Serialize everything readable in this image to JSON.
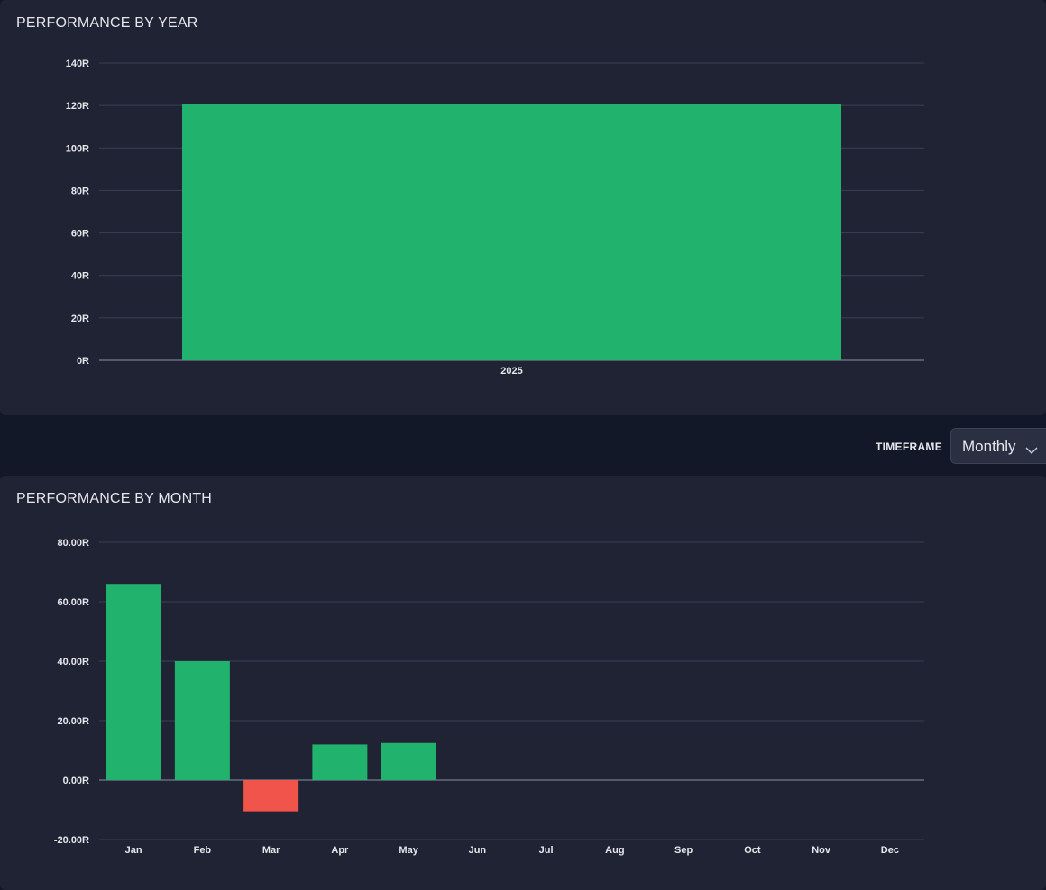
{
  "timeframe": {
    "label": "TIMEFRAME",
    "selected": "Monthly"
  },
  "colors": {
    "positive": "#21b26d",
    "negative": "#f0544a"
  },
  "chart_data": [
    {
      "type": "bar",
      "title": "PERFORMANCE BY YEAR",
      "categories": [
        "2025"
      ],
      "values": [
        120.5
      ],
      "ylim": [
        0,
        140
      ],
      "yticks": [
        0,
        20,
        40,
        60,
        80,
        100,
        120,
        140
      ],
      "ytick_labels": [
        "0R",
        "20R",
        "40R",
        "60R",
        "80R",
        "100R",
        "120R",
        "140R"
      ],
      "grid": true,
      "xlabel": "",
      "ylabel": ""
    },
    {
      "type": "bar",
      "title": "PERFORMANCE BY MONTH",
      "categories": [
        "Jan",
        "Feb",
        "Mar",
        "Apr",
        "May",
        "Jun",
        "Jul",
        "Aug",
        "Sep",
        "Oct",
        "Nov",
        "Dec"
      ],
      "values": [
        66,
        40,
        -10.5,
        12,
        12.5,
        0,
        0,
        0,
        0,
        0,
        0,
        0
      ],
      "ylim": [
        -20,
        80
      ],
      "yticks": [
        -20,
        0,
        20,
        40,
        60,
        80
      ],
      "ytick_labels": [
        "-20.00R",
        "0.00R",
        "20.00R",
        "40.00R",
        "60.00R",
        "80.00R"
      ],
      "grid": true,
      "xlabel": "",
      "ylabel": ""
    }
  ]
}
